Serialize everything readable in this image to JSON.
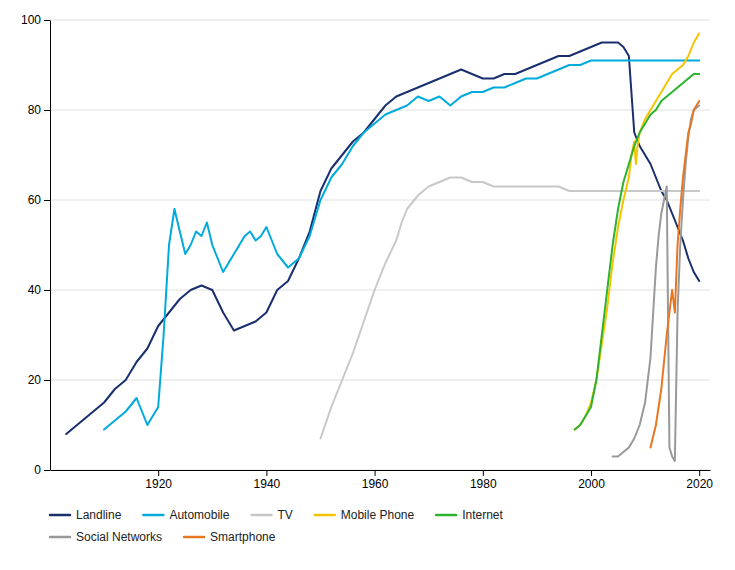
{
  "chart_data": {
    "type": "line",
    "xlim": [
      1900,
      2022
    ],
    "ylim": [
      0,
      100
    ],
    "xticks": [
      1920,
      1940,
      1960,
      1980,
      2000,
      2020
    ],
    "yticks": [
      0,
      20,
      40,
      60,
      80,
      100
    ],
    "grid": true,
    "legend": "bottom",
    "series": [
      {
        "name": "Landline",
        "color": "#1a2f6e",
        "x": [
          1903,
          1905,
          1907,
          1910,
          1912,
          1914,
          1916,
          1918,
          1920,
          1922,
          1924,
          1926,
          1928,
          1930,
          1932,
          1934,
          1936,
          1938,
          1940,
          1942,
          1944,
          1946,
          1948,
          1950,
          1952,
          1954,
          1956,
          1958,
          1960,
          1962,
          1964,
          1966,
          1968,
          1970,
          1972,
          1974,
          1976,
          1978,
          1980,
          1982,
          1984,
          1986,
          1988,
          1990,
          1992,
          1994,
          1996,
          1998,
          2000,
          2002,
          2004,
          2005,
          2006,
          2007,
          2008,
          2009,
          2010,
          2011,
          2012,
          2013,
          2014,
          2015,
          2016,
          2017,
          2018,
          2019,
          2020
        ],
        "values": [
          8,
          10,
          12,
          15,
          18,
          20,
          24,
          27,
          32,
          35,
          38,
          40,
          41,
          40,
          35,
          31,
          32,
          33,
          35,
          40,
          42,
          47,
          53,
          62,
          67,
          70,
          73,
          75,
          78,
          81,
          83,
          84,
          85,
          86,
          87,
          88,
          89,
          88,
          87,
          87,
          88,
          88,
          89,
          90,
          91,
          92,
          92,
          93,
          94,
          95,
          95,
          95,
          94,
          92,
          75,
          72,
          70,
          68,
          65,
          62,
          60,
          57,
          54,
          51,
          47,
          44,
          42
        ]
      },
      {
        "name": "Automobile",
        "color": "#00aadd",
        "x": [
          1910,
          1912,
          1914,
          1916,
          1918,
          1920,
          1921,
          1922,
          1923,
          1924,
          1925,
          1926,
          1927,
          1928,
          1929,
          1930,
          1931,
          1932,
          1933,
          1934,
          1935,
          1936,
          1937,
          1938,
          1939,
          1940,
          1942,
          1944,
          1946,
          1948,
          1950,
          1952,
          1954,
          1956,
          1958,
          1960,
          1962,
          1964,
          1966,
          1968,
          1970,
          1972,
          1974,
          1976,
          1978,
          1980,
          1982,
          1984,
          1986,
          1988,
          1990,
          1992,
          1994,
          1996,
          1998,
          2000,
          2002,
          2004,
          2006,
          2008,
          2010,
          2012,
          2014,
          2016,
          2018,
          2020
        ],
        "values": [
          9,
          11,
          13,
          16,
          10,
          14,
          30,
          50,
          58,
          53,
          48,
          50,
          53,
          52,
          55,
          50,
          47,
          44,
          46,
          48,
          50,
          52,
          53,
          51,
          52,
          54,
          48,
          45,
          47,
          52,
          60,
          65,
          68,
          72,
          75,
          77,
          79,
          80,
          81,
          83,
          82,
          83,
          81,
          83,
          84,
          84,
          85,
          85,
          86,
          87,
          87,
          88,
          89,
          90,
          90,
          91,
          91,
          91,
          91,
          91,
          91,
          91,
          91,
          91,
          91,
          91
        ]
      },
      {
        "name": "TV",
        "color": "#c8c8c8",
        "x": [
          1950,
          1952,
          1954,
          1956,
          1958,
          1960,
          1962,
          1964,
          1965,
          1966,
          1968,
          1970,
          1972,
          1974,
          1976,
          1978,
          1980,
          1982,
          1984,
          1986,
          1988,
          1990,
          1992,
          1994,
          1996,
          1998,
          2000,
          2002,
          2003,
          2004,
          2005,
          2006,
          2007,
          2008,
          2009,
          2010,
          2011,
          2012,
          2013,
          2014,
          2015,
          2016,
          2017,
          2018,
          2019,
          2020
        ],
        "values": [
          7,
          14,
          20,
          26,
          33,
          40,
          46,
          51,
          55,
          58,
          61,
          63,
          64,
          65,
          65,
          64,
          64,
          63,
          63,
          63,
          63,
          63,
          63,
          63,
          62,
          62,
          62,
          62,
          62,
          62,
          62,
          62,
          62,
          62,
          62,
          62,
          62,
          62,
          62,
          62,
          62,
          62,
          62,
          62,
          62,
          62
        ]
      },
      {
        "name": "Mobile Phone",
        "color": "#f5c400",
        "x": [
          1997,
          1998,
          1999,
          2000,
          2001,
          2002,
          2003,
          2004,
          2005,
          2006,
          2007,
          2007.5,
          2008,
          2008.3,
          2008.6,
          2009,
          2010,
          2011,
          2012,
          2013,
          2014,
          2015,
          2016,
          2017,
          2018,
          2019,
          2020
        ],
        "values": [
          9,
          10,
          12,
          15,
          20,
          28,
          36,
          46,
          54,
          60,
          65,
          70,
          73,
          68,
          72,
          75,
          78,
          80,
          82,
          84,
          86,
          88,
          89,
          90,
          92,
          95,
          97
        ]
      },
      {
        "name": "Internet",
        "color": "#2db32d",
        "x": [
          1997,
          1998,
          1999,
          2000,
          2001,
          2002,
          2003,
          2004,
          2005,
          2006,
          2007,
          2008,
          2009,
          2010,
          2011,
          2012,
          2013,
          2014,
          2015,
          2016,
          2017,
          2018,
          2019,
          2020
        ],
        "values": [
          9,
          10,
          12,
          14,
          20,
          30,
          40,
          50,
          58,
          64,
          68,
          72,
          75,
          77,
          79,
          80,
          82,
          83,
          84,
          85,
          86,
          87,
          88,
          88
        ]
      },
      {
        "name": "Social Networks",
        "color": "#999999",
        "x": [
          2004,
          2005,
          2006,
          2007,
          2008,
          2009,
          2010,
          2011,
          2011.5,
          2012,
          2012.5,
          2013,
          2013.5,
          2014,
          2014.5,
          2015,
          2015.5,
          2016,
          2016.5,
          2017,
          2017.5,
          2018,
          2018.5,
          2019,
          2020
        ],
        "values": [
          3,
          3,
          4,
          5,
          7,
          10,
          15,
          25,
          35,
          45,
          52,
          57,
          60,
          63,
          5,
          3,
          2,
          35,
          50,
          60,
          68,
          74,
          78,
          80,
          81
        ]
      },
      {
        "name": "Smartphone",
        "color": "#e87722",
        "x": [
          2011,
          2012,
          2013,
          2014,
          2015,
          2015.5,
          2016,
          2016.5,
          2017,
          2017.5,
          2018,
          2018.5,
          2019,
          2020
        ],
        "values": [
          5,
          10,
          18,
          30,
          40,
          35,
          50,
          58,
          65,
          70,
          75,
          77,
          80,
          82
        ]
      }
    ]
  }
}
